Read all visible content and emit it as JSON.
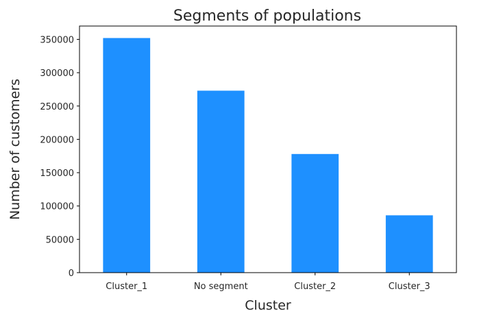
{
  "chart_data": {
    "type": "bar",
    "title": "Segments of populations",
    "xlabel": "Cluster",
    "ylabel": "Number of customers",
    "categories": [
      "Cluster_1",
      "No segment",
      "Cluster_2",
      "Cluster_3"
    ],
    "values": [
      352000,
      273000,
      178000,
      86000
    ],
    "ylim": [
      0,
      370000
    ],
    "yticks": [
      0,
      50000,
      100000,
      150000,
      200000,
      250000,
      300000,
      350000
    ],
    "ytick_labels": [
      "0",
      "50000",
      "100000",
      "150000",
      "200000",
      "250000",
      "300000",
      "350000"
    ],
    "grid": false,
    "bar_color": "#1e90ff"
  }
}
